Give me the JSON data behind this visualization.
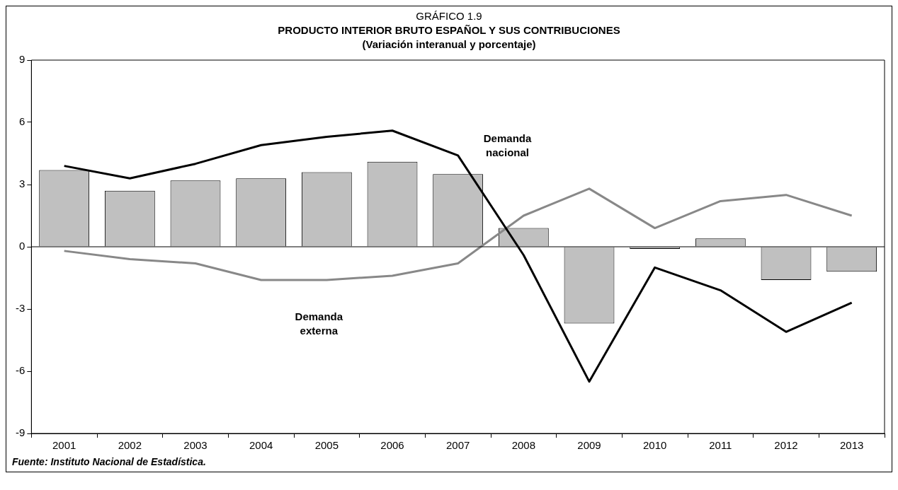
{
  "chart_data": {
    "type": "bar",
    "title": "PRODUCTO INTERIOR BRUTO ESPAÑOL Y SUS CONTRIBUCIONES",
    "subtitle": "(Variación interanual y porcentaje)",
    "annotations": [
      "GRÁFICO 1.9",
      "Fuente: Instituto Nacional de Estadística."
    ],
    "categories": [
      "2001",
      "2002",
      "2003",
      "2004",
      "2005",
      "2006",
      "2007",
      "2008",
      "2009",
      "2010",
      "2011",
      "2012",
      "2013"
    ],
    "series": [
      {
        "color": "#c0c0c0",
        "values": [
          3.7,
          2.7,
          3.2,
          3.3,
          3.6,
          4.1,
          3.5,
          0.9,
          -3.7,
          -0.1,
          0.4,
          -1.6,
          -1.2
        ]
      },
      {
        "type": "line",
        "name": "Demanda nacional",
        "color": "#000000",
        "values": [
          3.9,
          3.3,
          4.0,
          4.9,
          5.3,
          5.6,
          4.4,
          -0.4,
          -6.5,
          -1.0,
          -2.1,
          -4.1,
          -2.7
        ]
      },
      {
        "type": "line",
        "name": "Demanda externa",
        "color": "#888888",
        "values": [
          -0.2,
          -0.6,
          -0.8,
          -1.6,
          -1.6,
          -1.4,
          -0.8,
          1.5,
          2.8,
          0.9,
          2.2,
          2.5,
          1.5
        ]
      }
    ],
    "ylim": [
      -9,
      9
    ],
    "yticks": [
      -9,
      -6,
      -3,
      0,
      3,
      6,
      9
    ],
    "grid": false,
    "legend": false,
    "marker": "none",
    "line_style": "solid",
    "ref_lines": [
      {
        "axis": "y",
        "value": 0,
        "color": "#000000"
      }
    ]
  }
}
